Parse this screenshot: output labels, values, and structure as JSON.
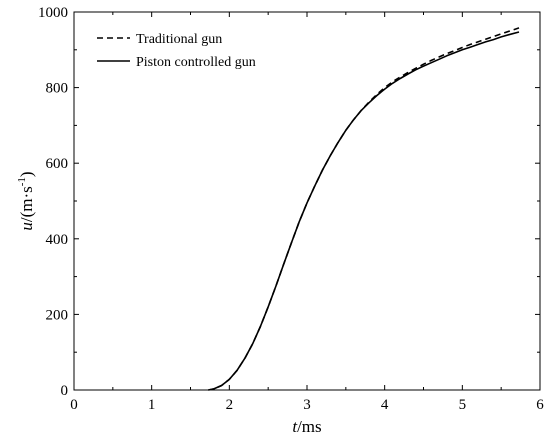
{
  "chart_data": {
    "type": "line",
    "xlabel_italic": "t",
    "xlabel_rest": "/ms",
    "ylabel_italic": "u",
    "ylabel_rest": "/(m·s",
    "ylabel_sup": "-1",
    "ylabel_close": ")",
    "xlim": [
      0,
      6
    ],
    "ylim": [
      0,
      1000
    ],
    "xticks": [
      "0",
      "1",
      "2",
      "3",
      "4",
      "5",
      "6"
    ],
    "yticks": [
      "0",
      "200",
      "400",
      "600",
      "800",
      "1000"
    ],
    "grid": false,
    "legend_position": "top-left",
    "series": [
      {
        "name": "Traditional gun",
        "style": "dashed",
        "color": "#000000",
        "x": [
          1.73,
          1.8,
          1.9,
          2.0,
          2.1,
          2.2,
          2.3,
          2.4,
          2.5,
          2.6,
          2.7,
          2.8,
          2.9,
          3.0,
          3.1,
          3.2,
          3.3,
          3.4,
          3.5,
          3.6,
          3.7,
          3.8,
          3.9,
          4.0,
          4.1,
          4.2,
          4.3,
          4.4,
          4.5,
          4.6,
          4.7,
          4.8,
          4.9,
          5.0,
          5.1,
          5.2,
          5.3,
          5.4,
          5.5,
          5.6,
          5.73
        ],
        "y": [
          0,
          3,
          12,
          28,
          52,
          84,
          122,
          168,
          220,
          275,
          333,
          390,
          445,
          495,
          540,
          582,
          620,
          655,
          687,
          715,
          740,
          762,
          782,
          800,
          815,
          828,
          840,
          851,
          862,
          872,
          881,
          890,
          898,
          906,
          914,
          921,
          928,
          935,
          942,
          949,
          958
        ]
      },
      {
        "name": "Piston controlled gun",
        "style": "solid",
        "color": "#000000",
        "x": [
          1.73,
          1.8,
          1.9,
          2.0,
          2.1,
          2.2,
          2.3,
          2.4,
          2.5,
          2.6,
          2.7,
          2.8,
          2.9,
          3.0,
          3.1,
          3.2,
          3.3,
          3.4,
          3.5,
          3.6,
          3.7,
          3.8,
          3.9,
          4.0,
          4.1,
          4.2,
          4.3,
          4.4,
          4.5,
          4.6,
          4.7,
          4.8,
          4.9,
          5.0,
          5.1,
          5.2,
          5.3,
          5.4,
          5.5,
          5.6,
          5.73
        ],
        "y": [
          0,
          3,
          12,
          28,
          52,
          84,
          122,
          168,
          220,
          275,
          333,
          390,
          445,
          495,
          540,
          582,
          620,
          655,
          687,
          715,
          740,
          760,
          779,
          796,
          811,
          824,
          836,
          847,
          857,
          866,
          875,
          884,
          892,
          900,
          907,
          914,
          921,
          927,
          934,
          940,
          947
        ]
      }
    ]
  }
}
